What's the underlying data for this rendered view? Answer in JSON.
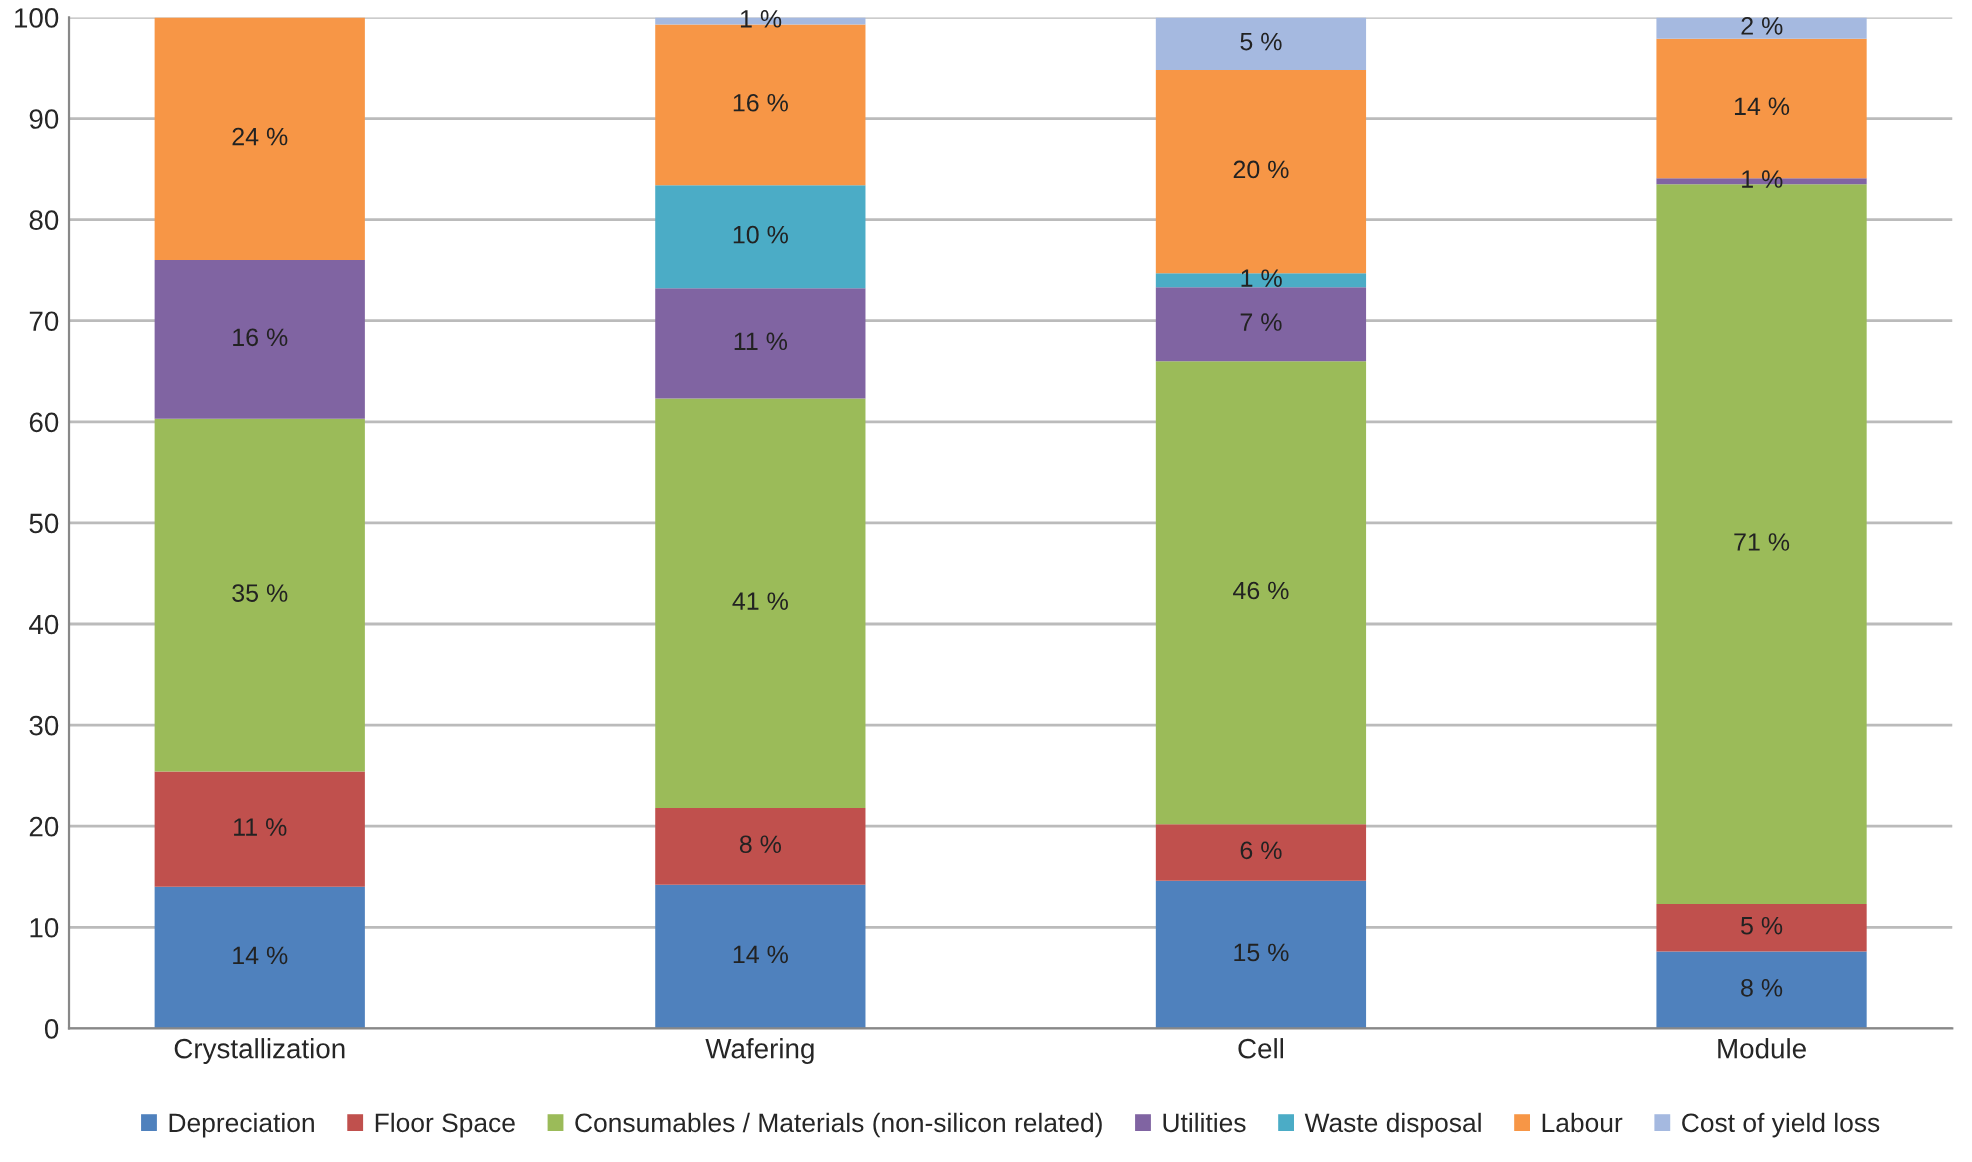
{
  "chart_data": {
    "type": "bar",
    "stacked": true,
    "categories": [
      "Crystallization",
      "Wafering",
      "Cell",
      "Module"
    ],
    "series": [
      {
        "name": "Depreciation",
        "color": "#4f81bd",
        "values": [
          14,
          14.2,
          14.6,
          7.6
        ],
        "value_labels": [
          "14 %",
          "14 %",
          "15 %",
          "8 %"
        ]
      },
      {
        "name": "Floor Space",
        "color": "#c0504d",
        "values": [
          11.4,
          7.6,
          5.6,
          4.7
        ],
        "value_labels": [
          "11 %",
          "8 %",
          "6 %",
          "5 %"
        ]
      },
      {
        "name": "Consumables / Materials (non-silicon related)",
        "color": "#9bbb59",
        "values": [
          34.9,
          40.5,
          45.8,
          71.2
        ],
        "value_labels": [
          "35 %",
          "41 %",
          "46 %",
          "71 %"
        ]
      },
      {
        "name": "Utilities",
        "color": "#8064a2",
        "values": [
          15.7,
          10.9,
          7.3,
          0.6
        ],
        "value_labels": [
          "16 %",
          "11 %",
          "7 %",
          "1 %"
        ]
      },
      {
        "name": "Waste disposal",
        "color": "#4bacc6",
        "values": [
          null,
          10.2,
          1.4,
          null
        ],
        "value_labels": [
          null,
          "10 %",
          "1 %",
          null
        ]
      },
      {
        "name": "Labour",
        "color": "#f79646",
        "values": [
          24,
          15.9,
          20.1,
          13.8
        ],
        "value_labels": [
          "24 %",
          "16 %",
          "20 %",
          "14 %"
        ]
      },
      {
        "name": "Cost of yield loss",
        "color": "#a5b9e0",
        "values": [
          null,
          0.7,
          5.2,
          2.1
        ],
        "value_labels": [
          null,
          "1 %",
          "5 %",
          "2 %"
        ]
      }
    ],
    "ylim": [
      0,
      100
    ],
    "yticks": [
      0,
      10,
      20,
      30,
      40,
      50,
      60,
      70,
      80,
      90,
      100
    ],
    "grid": "y",
    "legend": "bottom"
  }
}
